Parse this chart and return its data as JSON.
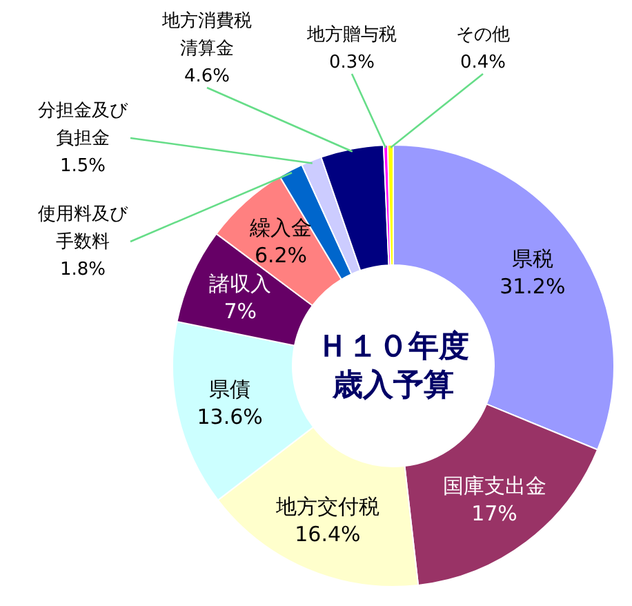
{
  "chart_data": {
    "type": "donut",
    "title": "Ｈ１０年度歳入予算",
    "categories": [
      "県税",
      "国庫支出金",
      "地方交付税",
      "県債",
      "諸収入",
      "繰入金",
      "使用料及び手数料",
      "分担金及び負担金",
      "地方消費税清算金",
      "地方贈与税",
      "その他"
    ],
    "values": [
      31.2,
      17,
      16.4,
      13.6,
      7,
      6.2,
      1.8,
      1.5,
      4.6,
      0.3,
      0.4
    ],
    "value_labels": [
      "31.2%",
      "17%",
      "16.4%",
      "13.6%",
      "7%",
      "6.2%",
      "1.8%",
      "1.5%",
      "4.6%",
      "0.3%",
      "0.4%"
    ],
    "colors": [
      "#9999ff",
      "#993366",
      "#ffffcc",
      "#ccffff",
      "#660066",
      "#ff8080",
      "#0066cc",
      "#ccccff",
      "#000080",
      "#ff00ff",
      "#ffff00"
    ]
  }
}
